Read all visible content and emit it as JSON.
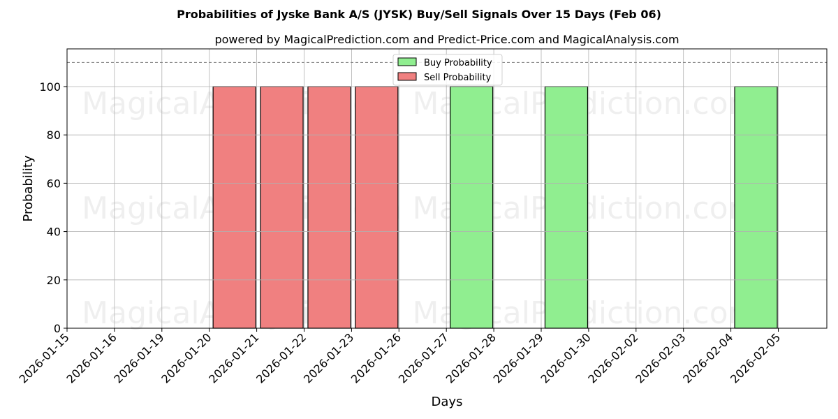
{
  "chart_data": {
    "type": "bar",
    "title": "Probabilities of Jyske Bank A/S (JYSK) Buy/Sell Signals Over 15 Days (Feb 06)",
    "subtitle": "powered by MagicalPrediction.com and Predict-Price.com and MagicalAnalysis.com",
    "xlabel": "Days",
    "ylabel": "Probability",
    "ylim": [
      0,
      115.6
    ],
    "yticks": [
      0,
      20,
      40,
      60,
      80,
      100
    ],
    "grid": true,
    "reference_line": {
      "y": 110,
      "style": "dashed",
      "color": "#808080"
    },
    "legend_position": "upper center",
    "categories": [
      "2026-01-15",
      "2026-01-16",
      "2026-01-19",
      "2026-01-20",
      "2026-01-21",
      "2026-01-22",
      "2026-01-23",
      "2026-01-26",
      "2026-01-27",
      "2026-01-28",
      "2026-01-29",
      "2026-01-30",
      "2026-02-02",
      "2026-02-03",
      "2026-02-04",
      "2026-02-05"
    ],
    "series": [
      {
        "name": "Buy Probability",
        "color": "#90EE90",
        "values": [
          0,
          0,
          0,
          0,
          0,
          0,
          0,
          0,
          0,
          100,
          0,
          100,
          0,
          0,
          0,
          100
        ]
      },
      {
        "name": "Sell Probability",
        "color": "#F08080",
        "values": [
          0,
          0,
          0,
          0,
          100,
          100,
          100,
          100,
          0,
          0,
          0,
          0,
          0,
          0,
          0,
          0
        ]
      }
    ],
    "bar_offset_note": "bars centered half a slot left of tick",
    "watermarks": [
      "MagicalAnalysis.com",
      "MagicalPrediction.com"
    ]
  }
}
